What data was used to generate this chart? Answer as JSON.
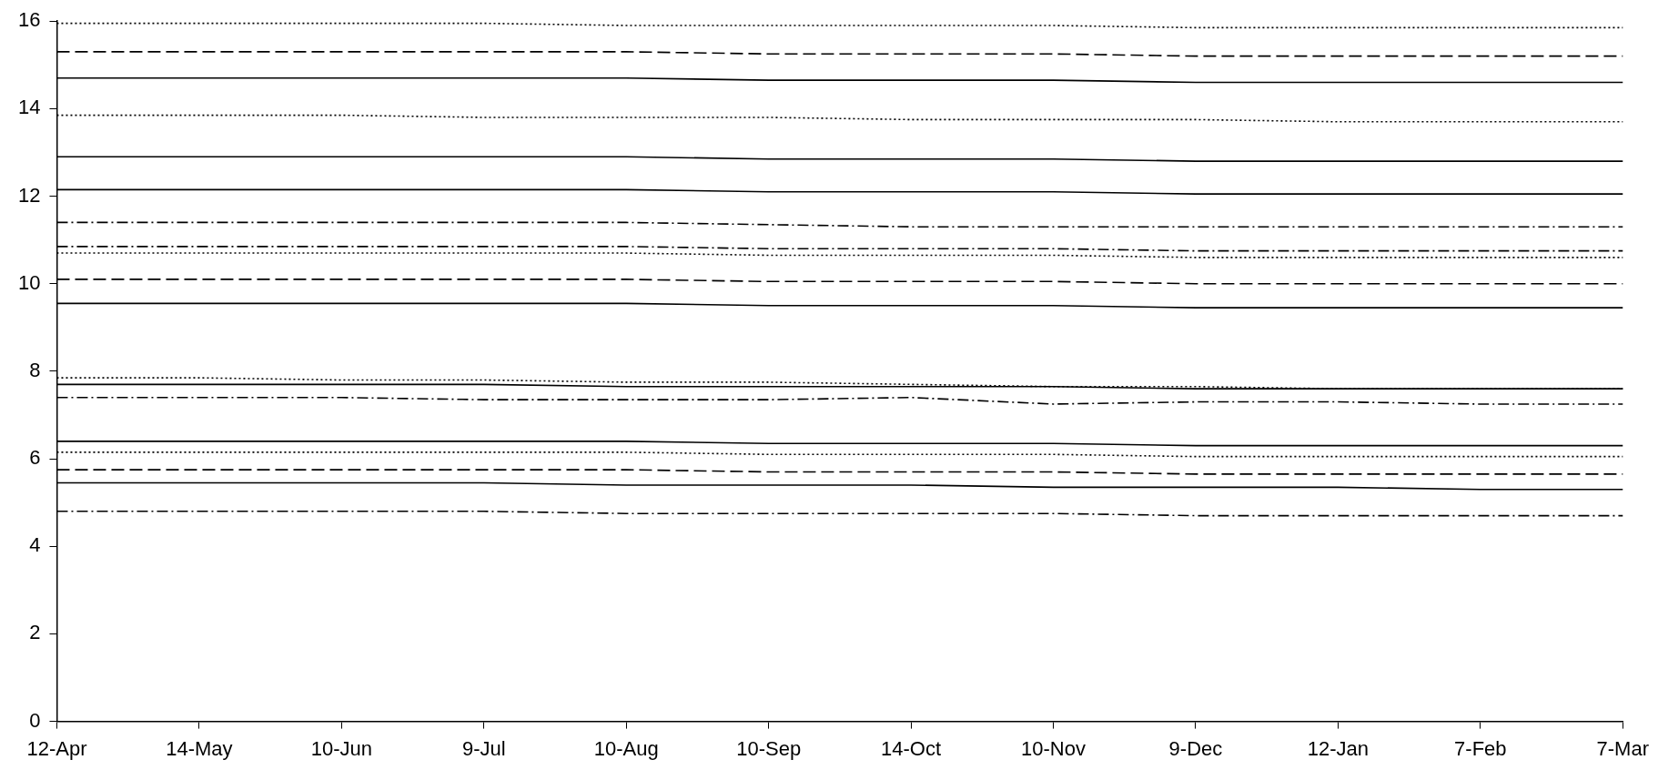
{
  "chart_data": {
    "type": "line",
    "categories": [
      "12-Apr",
      "14-May",
      "10-Jun",
      "9-Jul",
      "10-Aug",
      "10-Sep",
      "14-Oct",
      "10-Nov",
      "9-Dec",
      "12-Jan",
      "7-Feb",
      "7-Mar"
    ],
    "ylim": [
      0,
      16
    ],
    "yticks": [
      0,
      2,
      4,
      6,
      8,
      10,
      12,
      14,
      16
    ],
    "grid": false,
    "legend": false,
    "marker": "none",
    "series": [
      {
        "color": "#000000",
        "line_style": "dotted",
        "values": [
          15.95,
          15.95,
          15.95,
          15.95,
          15.9,
          15.9,
          15.9,
          15.9,
          15.85,
          15.85,
          15.85,
          15.85
        ]
      },
      {
        "color": "#000000",
        "line_style": "dashed",
        "values": [
          15.3,
          15.3,
          15.3,
          15.3,
          15.3,
          15.25,
          15.25,
          15.25,
          15.2,
          15.2,
          15.2,
          15.2
        ]
      },
      {
        "color": "#000000",
        "line_style": "solid",
        "values": [
          14.7,
          14.7,
          14.7,
          14.7,
          14.7,
          14.65,
          14.65,
          14.65,
          14.6,
          14.6,
          14.6,
          14.6
        ]
      },
      {
        "color": "#000000",
        "line_style": "dotted",
        "values": [
          13.85,
          13.85,
          13.85,
          13.8,
          13.8,
          13.8,
          13.75,
          13.75,
          13.75,
          13.7,
          13.7,
          13.7
        ]
      },
      {
        "color": "#000000",
        "line_style": "solid",
        "values": [
          12.9,
          12.9,
          12.9,
          12.9,
          12.9,
          12.85,
          12.85,
          12.85,
          12.8,
          12.8,
          12.8,
          12.8
        ]
      },
      {
        "color": "#000000",
        "line_style": "solid",
        "values": [
          12.15,
          12.15,
          12.15,
          12.15,
          12.15,
          12.1,
          12.1,
          12.1,
          12.05,
          12.05,
          12.05,
          12.05
        ]
      },
      {
        "color": "#000000",
        "line_style": "dashdot",
        "values": [
          11.4,
          11.4,
          11.4,
          11.4,
          11.4,
          11.35,
          11.3,
          11.3,
          11.3,
          11.3,
          11.3,
          11.3
        ]
      },
      {
        "color": "#000000",
        "line_style": "dashdot",
        "values": [
          10.85,
          10.85,
          10.85,
          10.85,
          10.85,
          10.8,
          10.8,
          10.8,
          10.75,
          10.75,
          10.75,
          10.75
        ]
      },
      {
        "color": "#000000",
        "line_style": "dotted",
        "values": [
          10.7,
          10.7,
          10.7,
          10.7,
          10.7,
          10.65,
          10.65,
          10.65,
          10.6,
          10.6,
          10.6,
          10.6
        ]
      },
      {
        "color": "#000000",
        "line_style": "dashed",
        "values": [
          10.1,
          10.1,
          10.1,
          10.1,
          10.1,
          10.05,
          10.05,
          10.05,
          10,
          10,
          10,
          10
        ]
      },
      {
        "color": "#000000",
        "line_style": "solid",
        "values": [
          9.55,
          9.55,
          9.55,
          9.55,
          9.55,
          9.5,
          9.5,
          9.5,
          9.45,
          9.45,
          9.45,
          9.45
        ]
      },
      {
        "color": "#000000",
        "line_style": "dotted",
        "values": [
          7.85,
          7.85,
          7.8,
          7.8,
          7.75,
          7.75,
          7.7,
          7.65,
          7.65,
          7.6,
          7.6,
          7.6
        ]
      },
      {
        "color": "#000000",
        "line_style": "solid",
        "values": [
          7.7,
          7.7,
          7.7,
          7.7,
          7.65,
          7.65,
          7.65,
          7.65,
          7.6,
          7.6,
          7.6,
          7.6
        ]
      },
      {
        "color": "#000000",
        "line_style": "dashdot",
        "values": [
          7.4,
          7.4,
          7.4,
          7.35,
          7.35,
          7.35,
          7.4,
          7.25,
          7.3,
          7.3,
          7.25,
          7.25
        ]
      },
      {
        "color": "#000000",
        "line_style": "solid",
        "values": [
          6.4,
          6.4,
          6.4,
          6.4,
          6.4,
          6.35,
          6.35,
          6.35,
          6.3,
          6.3,
          6.3,
          6.3
        ]
      },
      {
        "color": "#000000",
        "line_style": "dotted",
        "values": [
          6.15,
          6.15,
          6.15,
          6.15,
          6.15,
          6.1,
          6.1,
          6.1,
          6.05,
          6.05,
          6.05,
          6.05
        ]
      },
      {
        "color": "#000000",
        "line_style": "dashed",
        "values": [
          5.75,
          5.75,
          5.75,
          5.75,
          5.75,
          5.7,
          5.7,
          5.7,
          5.65,
          5.65,
          5.65,
          5.65
        ]
      },
      {
        "color": "#000000",
        "line_style": "solid",
        "values": [
          5.45,
          5.45,
          5.45,
          5.45,
          5.4,
          5.4,
          5.4,
          5.35,
          5.35,
          5.35,
          5.3,
          5.3
        ]
      },
      {
        "color": "#000000",
        "line_style": "dashdot",
        "values": [
          4.8,
          4.8,
          4.8,
          4.8,
          4.75,
          4.75,
          4.75,
          4.75,
          4.7,
          4.7,
          4.7,
          4.7
        ]
      }
    ]
  }
}
